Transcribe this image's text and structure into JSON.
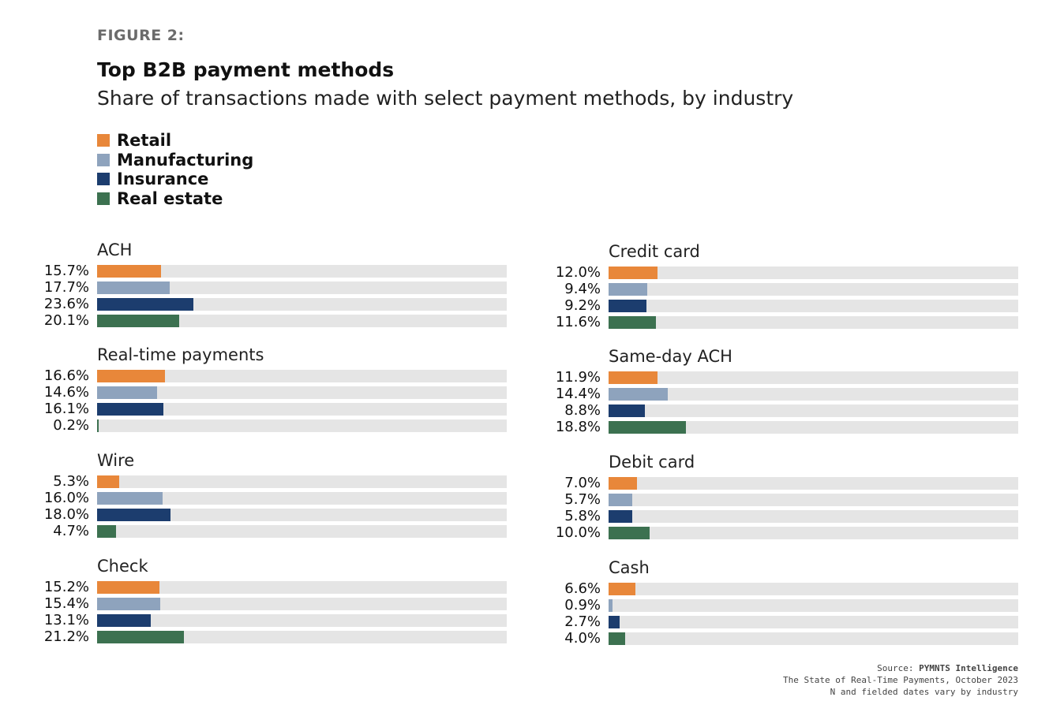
{
  "figure_label": "FIGURE 2:",
  "title": "Top B2B payment methods",
  "subtitle": "Share of transactions made with select payment methods, by industry",
  "legend": [
    {
      "label": "Retail",
      "color": "#e8873a"
    },
    {
      "label": "Manufacturing",
      "color": "#8ea3bd"
    },
    {
      "label": "Insurance",
      "color": "#1c3d6e"
    },
    {
      "label": "Real estate",
      "color": "#3c7150"
    }
  ],
  "source": {
    "prefix": "Source: ",
    "name": "PYMNTS Intelligence",
    "line2": "The State of Real-Time Payments, October 2023",
    "line3": "N and fielded dates vary by industry"
  },
  "chart_data": {
    "type": "bar",
    "orientation": "horizontal",
    "title": "Top B2B payment methods",
    "subtitle": "Share of transactions made with select payment methods, by industry",
    "series_names": [
      "Retail",
      "Manufacturing",
      "Insurance",
      "Real estate"
    ],
    "xlim": [
      0,
      100
    ],
    "unit": "%",
    "panels": [
      {
        "category": "ACH",
        "values": [
          15.7,
          17.7,
          23.6,
          20.1
        ],
        "labels": [
          "15.7%",
          "17.7%",
          "23.6%",
          "20.1%"
        ]
      },
      {
        "category": "Real-time payments",
        "values": [
          16.6,
          14.6,
          16.1,
          0.2
        ],
        "labels": [
          "16.6%",
          "14.6%",
          "16.1%",
          "0.2%"
        ]
      },
      {
        "category": "Wire",
        "values": [
          5.3,
          16.0,
          18.0,
          4.7
        ],
        "labels": [
          "5.3%",
          "16.0%",
          "18.0%",
          "4.7%"
        ]
      },
      {
        "category": "Check",
        "values": [
          15.2,
          15.4,
          13.1,
          21.2
        ],
        "labels": [
          "15.2%",
          "15.4%",
          "13.1%",
          "21.2%"
        ]
      },
      {
        "category": "Credit card",
        "values": [
          12.0,
          9.4,
          9.2,
          11.6
        ],
        "labels": [
          "12.0%",
          "9.4%",
          "9.2%",
          "11.6%"
        ]
      },
      {
        "category": "Same-day ACH",
        "values": [
          11.9,
          14.4,
          8.8,
          18.8
        ],
        "labels": [
          "11.9%",
          "14.4%",
          "8.8%",
          "18.8%"
        ]
      },
      {
        "category": "Debit card",
        "values": [
          7.0,
          5.7,
          5.8,
          10.0
        ],
        "labels": [
          "7.0%",
          "5.7%",
          "5.8%",
          "10.0%"
        ]
      },
      {
        "category": "Cash",
        "values": [
          6.6,
          0.9,
          2.7,
          4.0
        ],
        "labels": [
          "6.6%",
          "0.9%",
          "2.7%",
          "4.0%"
        ]
      }
    ]
  }
}
